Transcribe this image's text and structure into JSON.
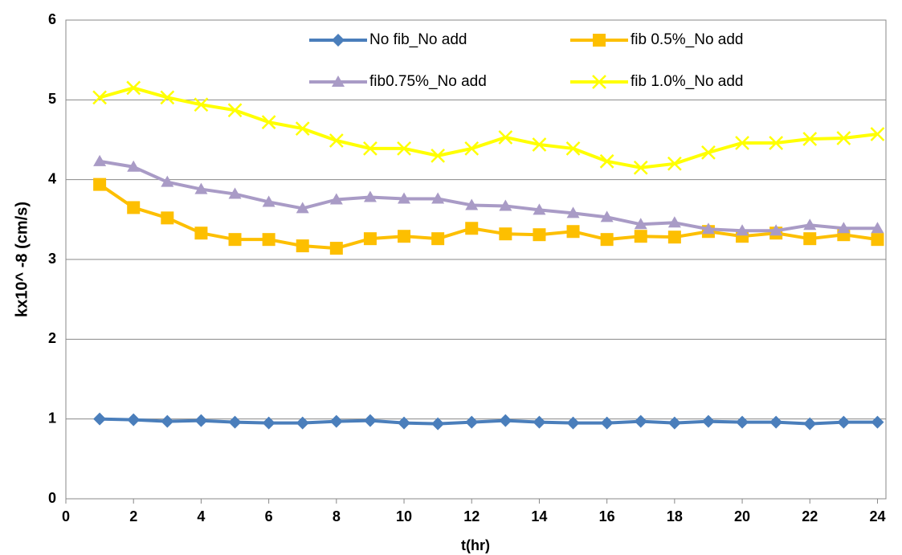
{
  "chart_data": {
    "type": "line",
    "x_label": "t(hr)",
    "y_label": "kx10^ -8 (cm/s)",
    "x": [
      1,
      2,
      3,
      4,
      5,
      6,
      7,
      8,
      9,
      10,
      11,
      12,
      13,
      14,
      15,
      16,
      17,
      18,
      19,
      20,
      21,
      22,
      23,
      24
    ],
    "series": [
      {
        "name": "No fib_No add",
        "color": "#4a7ebb",
        "marker": "diamond",
        "values": [
          1.0,
          0.99,
          0.97,
          0.98,
          0.96,
          0.95,
          0.95,
          0.97,
          0.98,
          0.95,
          0.94,
          0.96,
          0.98,
          0.96,
          0.95,
          0.95,
          0.97,
          0.95,
          0.97,
          0.96,
          0.96,
          0.94,
          0.96,
          0.96
        ]
      },
      {
        "name": "fib 0.5%_No add",
        "color": "#fdbf00",
        "marker": "square",
        "values": [
          3.94,
          3.65,
          3.52,
          3.33,
          3.25,
          3.25,
          3.17,
          3.14,
          3.26,
          3.29,
          3.26,
          3.39,
          3.32,
          3.31,
          3.35,
          3.25,
          3.29,
          3.28,
          3.35,
          3.29,
          3.33,
          3.26,
          3.31,
          3.25
        ]
      },
      {
        "name": "fib0.75%_No add",
        "color": "#a99bc6",
        "marker": "triangle",
        "values": [
          4.23,
          4.16,
          3.97,
          3.88,
          3.82,
          3.72,
          3.64,
          3.75,
          3.78,
          3.76,
          3.76,
          3.68,
          3.67,
          3.62,
          3.58,
          3.53,
          3.44,
          3.46,
          3.38,
          3.36,
          3.36,
          3.43,
          3.39,
          3.39
        ]
      },
      {
        "name": "fib 1.0%_No add",
        "color": "#ffff00",
        "marker": "x",
        "values": [
          5.03,
          5.15,
          5.03,
          4.94,
          4.87,
          4.72,
          4.64,
          4.49,
          4.39,
          4.39,
          4.3,
          4.39,
          4.53,
          4.44,
          4.39,
          4.23,
          4.15,
          4.2,
          4.34,
          4.46,
          4.46,
          4.51,
          4.52,
          4.57
        ]
      }
    ],
    "xlim": [
      0,
      24.25
    ],
    "xticks": [
      0,
      2,
      4,
      6,
      8,
      10,
      12,
      14,
      16,
      18,
      20,
      22,
      24
    ],
    "ylim": [
      0,
      6
    ],
    "yticks": [
      0,
      1,
      2,
      3,
      4,
      5,
      6
    ],
    "grid": true
  }
}
